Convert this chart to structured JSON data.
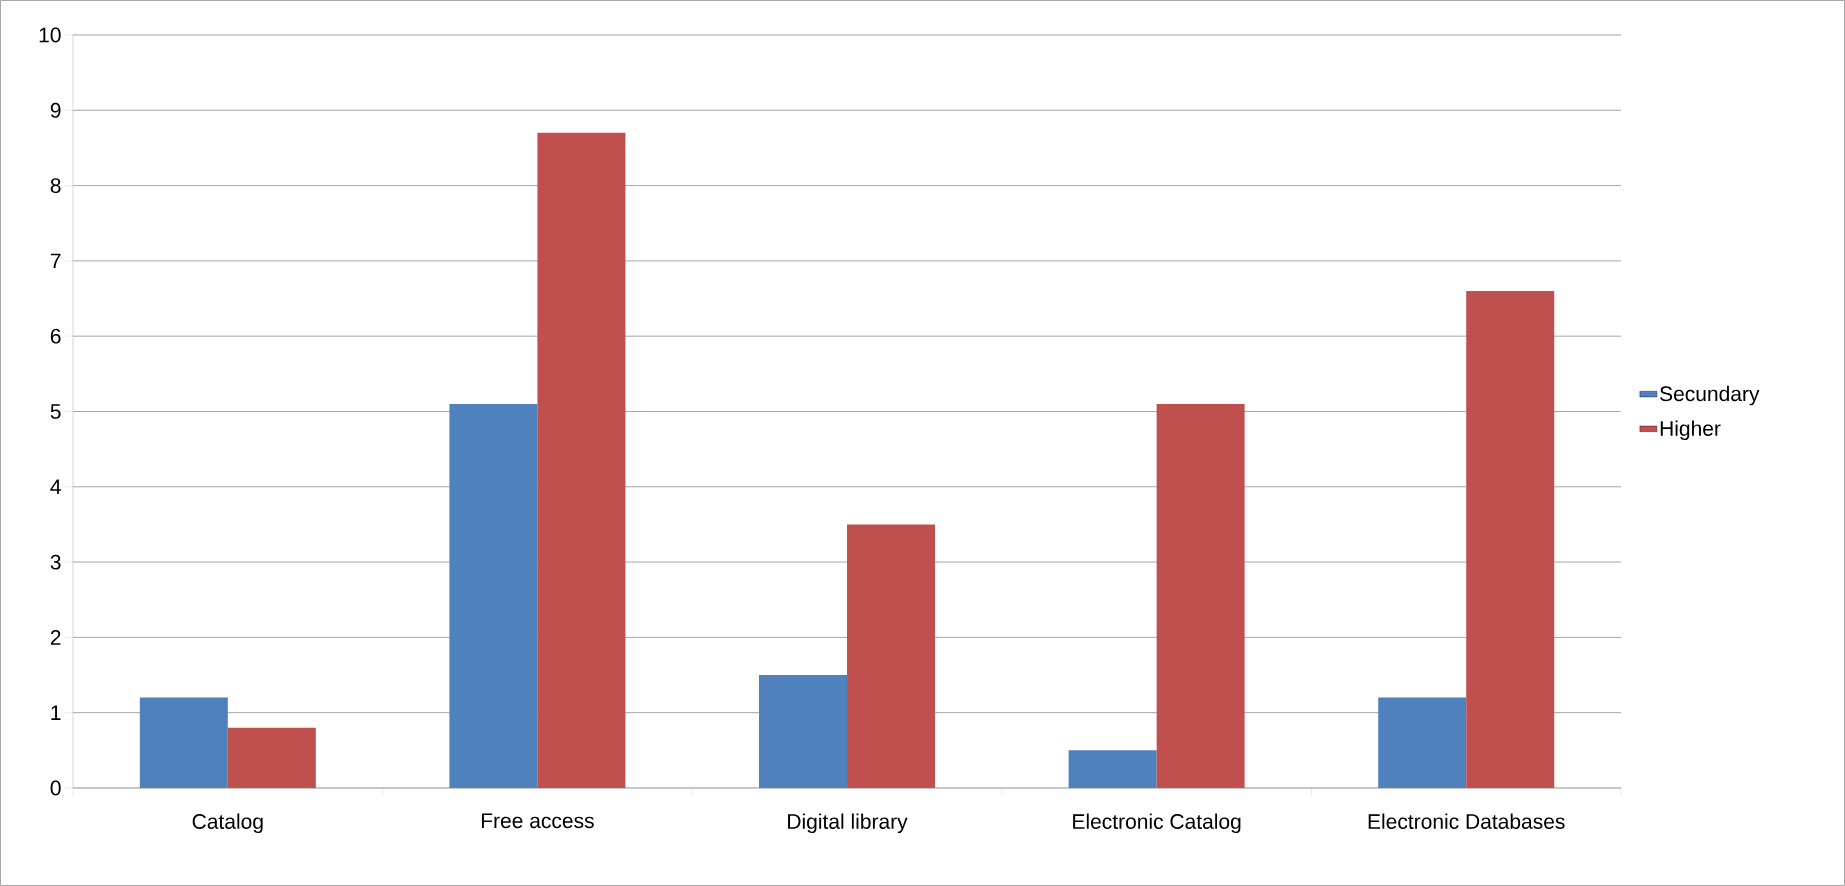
{
  "chart_data": {
    "type": "bar",
    "categories": [
      "Catalog",
      "Free access",
      "Digital library",
      "Electronic Catalog",
      "Electronic Databases"
    ],
    "series": [
      {
        "name": "Secundary",
        "color": "#4f81bd",
        "values": [
          1.2,
          5.1,
          1.5,
          0.5,
          1.2
        ]
      },
      {
        "name": "Higher",
        "color": "#c0504d",
        "values": [
          0.8,
          8.7,
          3.5,
          5.1,
          6.6
        ]
      }
    ],
    "ylim": [
      0,
      10
    ],
    "yticks": [
      0,
      1,
      2,
      3,
      4,
      5,
      6,
      7,
      8,
      9,
      10
    ],
    "grid": "y",
    "legend": "right"
  }
}
